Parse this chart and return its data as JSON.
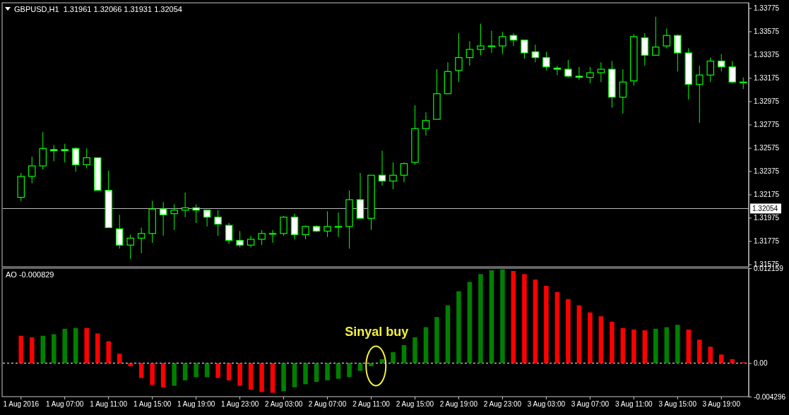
{
  "chart_data": [
    {
      "type": "candlestick",
      "title": "GBPUSD,H1  1.31961 1.32066 1.31931 1.32054",
      "color": "#00ff00",
      "categories": [
        null,
        null,
        null,
        null,
        null,
        null,
        null,
        null,
        null,
        null,
        null,
        null,
        null,
        null,
        null,
        null,
        null,
        null,
        null,
        null,
        null,
        null,
        null,
        null,
        null,
        null,
        null,
        null,
        null,
        null,
        null,
        null,
        null,
        null,
        null,
        null,
        null,
        null,
        null,
        null,
        null,
        null,
        null,
        null,
        null,
        null,
        null,
        null,
        null,
        null,
        null,
        null,
        null,
        null,
        null,
        null,
        null,
        null,
        null,
        null,
        null,
        null,
        null,
        null,
        null,
        null,
        null
      ],
      "ohlc": [
        [
          1.3215,
          1.3236,
          1.3212,
          1.3233
        ],
        [
          1.3233,
          1.325,
          1.3227,
          1.3242
        ],
        [
          1.3242,
          1.3271,
          1.3239,
          1.3257
        ],
        [
          1.3256,
          1.326,
          1.3246,
          1.3255
        ],
        [
          1.3256,
          1.3261,
          1.3245,
          1.3255
        ],
        [
          1.3257,
          1.3258,
          1.3237,
          1.3243
        ],
        [
          1.3243,
          1.3257,
          1.324,
          1.3249
        ],
        [
          1.3249,
          1.3249,
          1.3221,
          1.3221
        ],
        [
          1.3221,
          1.3238,
          1.3189,
          1.3189
        ],
        [
          1.3188,
          1.32,
          1.3171,
          1.3174
        ],
        [
          1.3174,
          1.3183,
          1.3162,
          1.318
        ],
        [
          1.318,
          1.3189,
          1.3167,
          1.3184
        ],
        [
          1.3184,
          1.3212,
          1.3176,
          1.3205
        ],
        [
          1.3205,
          1.3211,
          1.3182,
          1.32
        ],
        [
          1.3201,
          1.3209,
          1.3187,
          1.3204
        ],
        [
          1.3204,
          1.3219,
          1.3198,
          1.3206
        ],
        [
          1.3206,
          1.3209,
          1.3193,
          1.3204
        ],
        [
          1.3204,
          1.3204,
          1.319,
          1.3198
        ],
        [
          1.3198,
          1.3204,
          1.3182,
          1.3192
        ],
        [
          1.3191,
          1.3193,
          1.3175,
          1.3178
        ],
        [
          1.3178,
          1.3186,
          1.3172,
          1.3174
        ],
        [
          1.3174,
          1.3182,
          1.3172,
          1.3179
        ],
        [
          1.3179,
          1.3187,
          1.3174,
          1.3184
        ],
        [
          1.3184,
          1.3187,
          1.3176,
          1.3184
        ],
        [
          1.3184,
          1.3199,
          1.3182,
          1.3198
        ],
        [
          1.3198,
          1.3201,
          1.3179,
          1.3183
        ],
        [
          1.3183,
          1.3191,
          1.3179,
          1.319
        ],
        [
          1.319,
          1.3191,
          1.3185,
          1.3186
        ],
        [
          1.3186,
          1.3203,
          1.3181,
          1.319
        ],
        [
          1.319,
          1.3202,
          1.3181,
          1.319
        ],
        [
          1.319,
          1.3221,
          1.3171,
          1.3213
        ],
        [
          1.3213,
          1.3236,
          1.3197,
          1.3197
        ],
        [
          1.3197,
          1.3234,
          1.3187,
          1.3234
        ],
        [
          1.3234,
          1.3255,
          1.3225,
          1.3229
        ],
        [
          1.3229,
          1.3245,
          1.3222,
          1.3234
        ],
        [
          1.3234,
          1.3245,
          1.3228,
          1.3244
        ],
        [
          1.3245,
          1.3294,
          1.3243,
          1.3274
        ],
        [
          1.3274,
          1.3288,
          1.3268,
          1.3281
        ],
        [
          1.3282,
          1.3325,
          1.3282,
          1.3304
        ],
        [
          1.3304,
          1.3331,
          1.3304,
          1.3323
        ],
        [
          1.3324,
          1.3356,
          1.3314,
          1.3335
        ],
        [
          1.3335,
          1.3349,
          1.3328,
          1.3342
        ],
        [
          1.3342,
          1.3364,
          1.3337,
          1.3345
        ],
        [
          1.3345,
          1.3358,
          1.3339,
          1.3345
        ],
        [
          1.3345,
          1.3357,
          1.3338,
          1.3353
        ],
        [
          1.3354,
          1.3356,
          1.3345,
          1.335
        ],
        [
          1.335,
          1.335,
          1.3334,
          1.3339
        ],
        [
          1.334,
          1.3346,
          1.3331,
          1.3335
        ],
        [
          1.3335,
          1.334,
          1.3324,
          1.3327
        ],
        [
          1.3326,
          1.3328,
          1.332,
          1.3325
        ],
        [
          1.3325,
          1.3333,
          1.3318,
          1.3319
        ],
        [
          1.3319,
          1.3327,
          1.3316,
          1.3318
        ],
        [
          1.3318,
          1.3327,
          1.3313,
          1.3322
        ],
        [
          1.3322,
          1.3331,
          1.3314,
          1.3325
        ],
        [
          1.3325,
          1.3332,
          1.3292,
          1.3301
        ],
        [
          1.3301,
          1.3325,
          1.3287,
          1.3314
        ],
        [
          1.3315,
          1.3355,
          1.3311,
          1.3353
        ],
        [
          1.3352,
          1.3356,
          1.3328,
          1.3337
        ],
        [
          1.3337,
          1.337,
          1.3337,
          1.3344
        ],
        [
          1.3345,
          1.336,
          1.3343,
          1.3354
        ],
        [
          1.3354,
          1.3355,
          1.3323,
          1.3339
        ],
        [
          1.3339,
          1.3343,
          1.3299,
          1.3312
        ],
        [
          1.3312,
          1.3328,
          1.3279,
          1.332
        ],
        [
          1.332,
          1.3335,
          1.3314,
          1.3332
        ],
        [
          1.3332,
          1.3338,
          1.3323,
          1.3327
        ],
        [
          1.3327,
          1.3332,
          1.3313,
          1.3314
        ],
        [
          1.3314,
          1.3318,
          1.3308,
          1.3314
        ]
      ],
      "ylim": [
        1.3156,
        1.3382
      ],
      "yticks": [
        1.31575,
        1.31775,
        1.31975,
        1.32175,
        1.32375,
        1.32575,
        1.32775,
        1.32975,
        1.33175,
        1.33375,
        1.33575,
        1.33775
      ],
      "tick_labels": "y",
      "ref_lines": [
        {
          "axis": "y",
          "value": 1.32054,
          "label": "1.32054",
          "color": "#c0c0c0"
        }
      ]
    },
    {
      "type": "bar",
      "title": "AO -0.000829",
      "categories": [
        "1 Aug 2016",
        null,
        null,
        null,
        "1 Aug 07:00",
        null,
        null,
        null,
        "1 Aug 11:00",
        null,
        null,
        null,
        "1 Aug 15:00",
        null,
        null,
        null,
        "1 Aug 19:00",
        null,
        null,
        null,
        "1 Aug 23:00",
        null,
        null,
        null,
        "2 Aug 03:00",
        null,
        null,
        null,
        "2 Aug 07:00",
        null,
        null,
        null,
        "2 Aug 11:00",
        null,
        null,
        null,
        "2 Aug 15:00",
        null,
        null,
        null,
        "2 Aug 19:00",
        null,
        null,
        null,
        "2 Aug 23:00",
        null,
        null,
        null,
        "3 Aug 03:00",
        null,
        null,
        null,
        "3 Aug 07:00",
        null,
        null,
        null,
        "3 Aug 11:00",
        null,
        null,
        null,
        "3 Aug 15:00",
        null,
        null,
        null,
        "3 Aug 19:00",
        null,
        null
      ],
      "values": [
        0.0035,
        0.0033,
        0.0035,
        0.0037,
        0.0044,
        0.0045,
        0.0045,
        0.0038,
        0.0028,
        0.0012,
        -0.0004,
        -0.0019,
        -0.0028,
        -0.0031,
        -0.0029,
        -0.0022,
        -0.0018,
        -0.0018,
        -0.0019,
        -0.0022,
        -0.0029,
        -0.0034,
        -0.0037,
        -0.0038,
        -0.0036,
        -0.0031,
        -0.0027,
        -0.0024,
        -0.0022,
        -0.002,
        -0.0018,
        -0.001,
        -0.0004,
        0.0005,
        0.0014,
        0.0023,
        0.0033,
        0.0046,
        0.0059,
        0.0074,
        0.0092,
        0.0104,
        0.0114,
        0.0119,
        0.012,
        0.0118,
        0.0114,
        0.0107,
        0.0099,
        0.0091,
        0.0082,
        0.0074,
        0.0065,
        0.006,
        0.0053,
        0.0045,
        0.0043,
        0.0042,
        0.0044,
        0.0046,
        0.0049,
        0.0043,
        0.003,
        0.0021,
        0.0011,
        0.0005,
        0.0001
      ],
      "colors": [
        "#ff0000",
        "#ff0000",
        "#008000",
        "#008000",
        "#008000",
        "#008000",
        "#ff0000",
        "#ff0000",
        "#ff0000",
        "#ff0000",
        "#ff0000",
        "#ff0000",
        "#ff0000",
        "#ff0000",
        "#008000",
        "#008000",
        "#008000",
        "#008000",
        "#ff0000",
        "#ff0000",
        "#ff0000",
        "#ff0000",
        "#ff0000",
        "#ff0000",
        "#008000",
        "#008000",
        "#008000",
        "#008000",
        "#008000",
        "#008000",
        "#008000",
        "#008000",
        "#008000",
        "#008000",
        "#008000",
        "#008000",
        "#008000",
        "#008000",
        "#008000",
        "#008000",
        "#008000",
        "#008000",
        "#008000",
        "#008000",
        "#008000",
        "#ff0000",
        "#ff0000",
        "#ff0000",
        "#ff0000",
        "#ff0000",
        "#ff0000",
        "#ff0000",
        "#ff0000",
        "#ff0000",
        "#ff0000",
        "#ff0000",
        "#ff0000",
        "#ff0000",
        "#008000",
        "#008000",
        "#008000",
        "#ff0000",
        "#ff0000",
        "#ff0000",
        "#ff0000",
        "#ff0000",
        "#ff0000"
      ],
      "ylim": [
        -0.004296,
        0.012159
      ],
      "yticks": [
        -0.004296,
        {
          "value": 0,
          "label": "0.00"
        },
        0.012159
      ],
      "ref_lines": [
        {
          "axis": "y",
          "value": 0,
          "color": "#ffffff",
          "line_style": "dashed"
        }
      ],
      "annotations": [
        "Sinyal buy"
      ]
    }
  ]
}
